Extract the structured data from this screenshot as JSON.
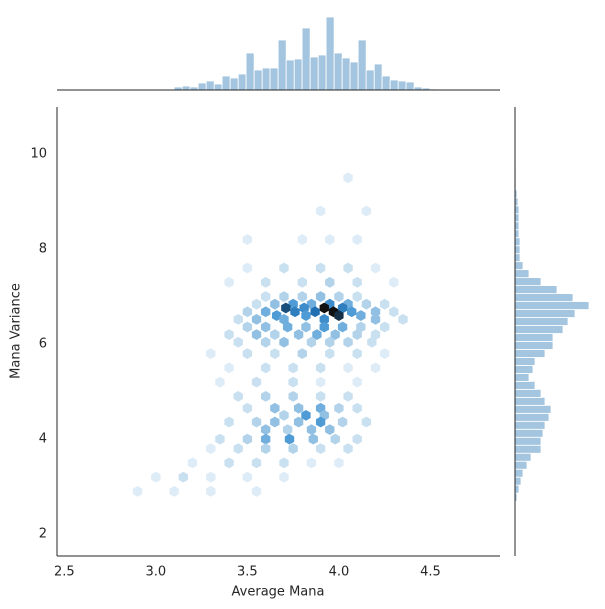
{
  "chart_data": {
    "type": "hexbin",
    "x_label": "Average Mana",
    "y_label": "Mana Variance",
    "xlim": [
      2.46,
      4.88
    ],
    "ylim": [
      1.54,
      10.99
    ],
    "xticks": [
      {
        "value": 2.5,
        "label": "2.5"
      },
      {
        "value": 3.0,
        "label": "3.0"
      },
      {
        "value": 3.5,
        "label": "3.5"
      },
      {
        "value": 4.0,
        "label": "4.0"
      },
      {
        "value": 4.5,
        "label": "4.5"
      }
    ],
    "yticks": [
      2,
      4,
      6,
      8,
      10
    ],
    "cmap": [
      "#f4f9fd",
      "#b3d3ea",
      "#4f9bd6",
      "#1f6fb2",
      "#111111"
    ],
    "hist_color": "#a4c5df",
    "cells": [
      [
        3.6,
        7.0,
        2
      ],
      [
        3.7,
        7.0,
        3
      ],
      [
        3.8,
        7.0,
        3
      ],
      [
        3.9,
        7.0,
        4
      ],
      [
        4.0,
        7.0,
        3
      ],
      [
        4.1,
        7.0,
        2
      ],
      [
        3.55,
        6.84,
        2
      ],
      [
        3.65,
        6.84,
        4
      ],
      [
        3.75,
        6.84,
        6
      ],
      [
        3.85,
        6.84,
        5
      ],
      [
        3.95,
        6.84,
        7
      ],
      [
        4.05,
        6.84,
        5
      ],
      [
        4.15,
        6.84,
        3
      ],
      [
        4.25,
        6.84,
        2
      ],
      [
        3.71,
        6.76,
        10
      ],
      [
        3.81,
        6.76,
        7
      ],
      [
        3.92,
        6.76,
        12
      ],
      [
        4.02,
        6.76,
        8
      ],
      [
        3.5,
        6.68,
        3
      ],
      [
        3.6,
        6.68,
        5
      ],
      [
        3.76,
        6.68,
        8
      ],
      [
        3.87,
        6.68,
        9
      ],
      [
        3.97,
        6.68,
        12
      ],
      [
        4.07,
        6.68,
        6
      ],
      [
        4.2,
        6.68,
        4
      ],
      [
        4.3,
        6.68,
        2
      ],
      [
        3.66,
        6.6,
        6
      ],
      [
        3.82,
        6.6,
        6
      ],
      [
        4.0,
        6.6,
        11
      ],
      [
        4.12,
        6.6,
        5
      ],
      [
        3.45,
        6.52,
        2
      ],
      [
        3.55,
        6.52,
        4
      ],
      [
        3.7,
        6.52,
        5
      ],
      [
        3.92,
        6.52,
        7
      ],
      [
        4.2,
        6.52,
        4
      ],
      [
        4.35,
        6.52,
        2
      ],
      [
        3.5,
        6.36,
        3
      ],
      [
        3.6,
        6.36,
        4
      ],
      [
        3.72,
        6.36,
        5
      ],
      [
        3.82,
        6.36,
        4
      ],
      [
        3.92,
        6.36,
        6
      ],
      [
        4.02,
        6.36,
        5
      ],
      [
        4.12,
        6.36,
        3
      ],
      [
        4.25,
        6.36,
        2
      ],
      [
        3.4,
        6.2,
        2
      ],
      [
        3.55,
        6.2,
        4
      ],
      [
        3.65,
        6.2,
        3
      ],
      [
        3.78,
        6.2,
        4
      ],
      [
        3.88,
        6.2,
        5
      ],
      [
        3.98,
        6.2,
        4
      ],
      [
        4.1,
        6.2,
        3
      ],
      [
        4.2,
        6.2,
        2
      ],
      [
        3.45,
        6.04,
        2
      ],
      [
        3.6,
        6.04,
        3
      ],
      [
        3.7,
        6.04,
        4
      ],
      [
        3.85,
        6.04,
        3
      ],
      [
        3.95,
        6.04,
        3
      ],
      [
        4.05,
        6.04,
        3
      ],
      [
        4.18,
        6.04,
        2
      ],
      [
        3.3,
        5.8,
        1
      ],
      [
        3.5,
        5.8,
        2
      ],
      [
        3.65,
        5.8,
        2
      ],
      [
        3.8,
        5.8,
        3
      ],
      [
        3.95,
        5.8,
        2
      ],
      [
        4.1,
        5.8,
        2
      ],
      [
        4.25,
        5.8,
        1
      ],
      [
        3.4,
        5.5,
        1
      ],
      [
        3.6,
        5.5,
        2
      ],
      [
        3.75,
        5.5,
        2
      ],
      [
        3.9,
        5.5,
        2
      ],
      [
        4.05,
        5.5,
        1
      ],
      [
        4.2,
        5.5,
        1
      ],
      [
        3.35,
        5.2,
        1
      ],
      [
        3.55,
        5.2,
        2
      ],
      [
        3.75,
        5.2,
        2
      ],
      [
        3.9,
        5.2,
        1
      ],
      [
        4.1,
        5.2,
        1
      ],
      [
        3.45,
        4.9,
        2
      ],
      [
        3.6,
        4.9,
        3
      ],
      [
        3.75,
        4.9,
        3
      ],
      [
        3.9,
        4.9,
        2
      ],
      [
        4.05,
        4.9,
        2
      ],
      [
        3.5,
        4.65,
        2
      ],
      [
        3.65,
        4.65,
        4
      ],
      [
        3.78,
        4.65,
        4
      ],
      [
        3.9,
        4.65,
        5
      ],
      [
        4.0,
        4.65,
        3
      ],
      [
        4.1,
        4.65,
        2
      ],
      [
        3.7,
        4.5,
        3
      ],
      [
        3.82,
        4.5,
        6
      ],
      [
        3.92,
        4.5,
        4
      ],
      [
        3.4,
        4.36,
        2
      ],
      [
        3.55,
        4.36,
        3
      ],
      [
        3.65,
        4.36,
        4
      ],
      [
        3.78,
        4.36,
        4
      ],
      [
        3.9,
        4.36,
        6
      ],
      [
        4.02,
        4.36,
        3
      ],
      [
        4.15,
        4.36,
        2
      ],
      [
        3.6,
        4.2,
        4
      ],
      [
        3.72,
        4.2,
        3
      ],
      [
        3.85,
        4.2,
        4
      ],
      [
        3.95,
        4.2,
        4
      ],
      [
        3.35,
        4.0,
        2
      ],
      [
        3.5,
        4.0,
        3
      ],
      [
        3.6,
        4.0,
        5
      ],
      [
        3.73,
        4.0,
        6
      ],
      [
        3.86,
        4.0,
        4
      ],
      [
        3.98,
        4.0,
        3
      ],
      [
        4.1,
        4.0,
        2
      ],
      [
        3.3,
        3.8,
        1
      ],
      [
        3.45,
        3.8,
        2
      ],
      [
        3.6,
        3.8,
        3
      ],
      [
        3.75,
        3.8,
        3
      ],
      [
        3.9,
        3.8,
        2
      ],
      [
        4.05,
        3.8,
        2
      ],
      [
        3.2,
        3.5,
        1
      ],
      [
        3.4,
        3.5,
        2
      ],
      [
        3.55,
        3.5,
        2
      ],
      [
        3.7,
        3.5,
        2
      ],
      [
        3.85,
        3.5,
        1
      ],
      [
        4.0,
        3.5,
        1
      ],
      [
        3.0,
        3.2,
        1
      ],
      [
        3.15,
        3.2,
        2
      ],
      [
        3.3,
        3.2,
        1
      ],
      [
        3.5,
        3.2,
        1
      ],
      [
        3.7,
        3.2,
        1
      ],
      [
        2.9,
        2.9,
        1
      ],
      [
        3.1,
        2.9,
        1
      ],
      [
        3.3,
        2.9,
        1
      ],
      [
        3.55,
        2.9,
        1
      ],
      [
        3.5,
        8.2,
        1
      ],
      [
        3.8,
        8.2,
        1
      ],
      [
        3.95,
        8.2,
        1
      ],
      [
        4.1,
        8.2,
        1
      ],
      [
        3.5,
        7.6,
        1
      ],
      [
        3.7,
        7.6,
        2
      ],
      [
        3.9,
        7.6,
        2
      ],
      [
        4.05,
        7.6,
        2
      ],
      [
        4.2,
        7.6,
        1
      ],
      [
        3.4,
        7.3,
        1
      ],
      [
        3.6,
        7.3,
        2
      ],
      [
        3.8,
        7.3,
        2
      ],
      [
        3.95,
        7.3,
        3
      ],
      [
        4.1,
        7.3,
        2
      ],
      [
        4.3,
        7.3,
        1
      ],
      [
        3.9,
        8.8,
        1
      ],
      [
        4.15,
        8.8,
        1
      ],
      [
        4.05,
        9.5,
        1
      ]
    ],
    "x_hist": {
      "bins": [
        3.1,
        3.144,
        3.187,
        3.231,
        3.275,
        3.319,
        3.362,
        3.406,
        3.45,
        3.493,
        3.537,
        3.581,
        3.624,
        3.668,
        3.712,
        3.756,
        3.799,
        3.843,
        3.887,
        3.93,
        3.974,
        4.018,
        4.061,
        4.105,
        4.149,
        4.193,
        4.236,
        4.28,
        4.324,
        4.367,
        4.411,
        4.455,
        4.498,
        4.542
      ],
      "counts": [
        3,
        4,
        3,
        7,
        9,
        6,
        14,
        12,
        16,
        37,
        20,
        22,
        22,
        50,
        30,
        31,
        62,
        33,
        35,
        73,
        37,
        32,
        28,
        50,
        20,
        26,
        14,
        10,
        9,
        8,
        3,
        2,
        1
      ]
    },
    "y_hist": {
      "bins": [
        2.695,
        2.863,
        3.031,
        3.199,
        3.367,
        3.535,
        3.703,
        3.871,
        4.039,
        4.207,
        4.375,
        4.543,
        4.711,
        4.879,
        5.047,
        5.215,
        5.383,
        5.551,
        5.719,
        5.887,
        6.055,
        6.223,
        6.391,
        6.559,
        6.727,
        6.895,
        7.063,
        7.231,
        7.399,
        7.567,
        7.735,
        7.903,
        8.071,
        8.239,
        8.407,
        8.575,
        8.743,
        8.911,
        9.079,
        9.247,
        9.415,
        9.583,
        9.751
      ],
      "counts": [
        2,
        4,
        6,
        8,
        12,
        16,
        26,
        26,
        28,
        30,
        34,
        36,
        30,
        26,
        20,
        14,
        18,
        20,
        30,
        38,
        38,
        48,
        53,
        60,
        74,
        58,
        42,
        26,
        14,
        8,
        5,
        5,
        5,
        4,
        4,
        4,
        4,
        3,
        2,
        1,
        1,
        1
      ]
    }
  }
}
